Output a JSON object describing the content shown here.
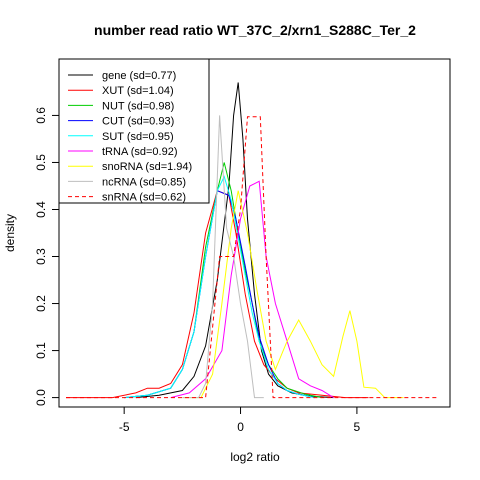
{
  "chart_data": {
    "type": "line",
    "title": "number read ratio WT_37C_2/xrn1_S288C_Ter_2",
    "xlabel": "log2 ratio",
    "ylabel": "density",
    "xlim": [
      -7.8,
      9.0
    ],
    "ylim": [
      -0.02,
      0.72
    ],
    "x_ticks": [
      -5,
      0,
      5
    ],
    "x_tick_labels": [
      "-5",
      "0",
      "5"
    ],
    "y_ticks": [
      0.0,
      0.1,
      0.2,
      0.3,
      0.4,
      0.5,
      0.6
    ],
    "y_tick_labels": [
      "0.0",
      "0.1",
      "0.2",
      "0.3",
      "0.4",
      "0.5",
      "0.6"
    ],
    "grid": false,
    "legend_position": "top-left",
    "series": [
      {
        "name": "gene (sd=0.77)",
        "color": "#000000",
        "dash": "solid",
        "points": [
          [
            -4.5,
            0.0
          ],
          [
            -3.5,
            0.005
          ],
          [
            -2.5,
            0.015
          ],
          [
            -2.0,
            0.045
          ],
          [
            -1.5,
            0.11
          ],
          [
            -1.0,
            0.25
          ],
          [
            -0.5,
            0.45
          ],
          [
            -0.3,
            0.6
          ],
          [
            -0.1,
            0.67
          ],
          [
            0.1,
            0.55
          ],
          [
            0.3,
            0.38
          ],
          [
            0.6,
            0.22
          ],
          [
            0.9,
            0.1
          ],
          [
            1.2,
            0.05
          ],
          [
            1.6,
            0.025
          ],
          [
            2.2,
            0.01
          ],
          [
            3.0,
            0.003
          ],
          [
            4.0,
            0.0
          ]
        ]
      },
      {
        "name": "XUT (sd=1.04)",
        "color": "#ff0000",
        "dash": "solid",
        "points": [
          [
            -7.5,
            0.0
          ],
          [
            -5.5,
            0.0
          ],
          [
            -4.5,
            0.01
          ],
          [
            -4.0,
            0.02
          ],
          [
            -3.5,
            0.02
          ],
          [
            -3.0,
            0.03
          ],
          [
            -2.5,
            0.07
          ],
          [
            -2.0,
            0.18
          ],
          [
            -1.5,
            0.35
          ],
          [
            -1.0,
            0.44
          ],
          [
            -0.5,
            0.43
          ],
          [
            -0.2,
            0.35
          ],
          [
            0.2,
            0.22
          ],
          [
            0.6,
            0.12
          ],
          [
            1.0,
            0.07
          ],
          [
            1.5,
            0.04
          ],
          [
            2.0,
            0.02
          ],
          [
            2.5,
            0.01
          ],
          [
            3.5,
            0.005
          ],
          [
            4.5,
            0.0
          ],
          [
            5.5,
            0.0
          ]
        ]
      },
      {
        "name": "NUT (sd=0.98)",
        "color": "#00cd00",
        "dash": "solid",
        "points": [
          [
            -5.0,
            0.0
          ],
          [
            -4.0,
            0.005
          ],
          [
            -3.0,
            0.02
          ],
          [
            -2.5,
            0.06
          ],
          [
            -2.0,
            0.14
          ],
          [
            -1.5,
            0.32
          ],
          [
            -1.0,
            0.44
          ],
          [
            -0.7,
            0.5
          ],
          [
            -0.4,
            0.44
          ],
          [
            -0.1,
            0.35
          ],
          [
            0.2,
            0.27
          ],
          [
            0.5,
            0.2
          ],
          [
            0.8,
            0.12
          ],
          [
            1.2,
            0.07
          ],
          [
            1.6,
            0.04
          ],
          [
            2.0,
            0.02
          ],
          [
            2.8,
            0.007
          ],
          [
            3.5,
            0.0
          ]
        ]
      },
      {
        "name": "CUT (sd=0.93)",
        "color": "#0000ff",
        "dash": "solid",
        "points": [
          [
            -5.0,
            0.0
          ],
          [
            -4.0,
            0.005
          ],
          [
            -3.0,
            0.02
          ],
          [
            -2.5,
            0.06
          ],
          [
            -2.0,
            0.14
          ],
          [
            -1.5,
            0.3
          ],
          [
            -1.0,
            0.44
          ],
          [
            -0.5,
            0.43
          ],
          [
            -0.2,
            0.38
          ],
          [
            0.2,
            0.28
          ],
          [
            0.5,
            0.2
          ],
          [
            0.8,
            0.13
          ],
          [
            1.2,
            0.07
          ],
          [
            1.6,
            0.03
          ],
          [
            2.0,
            0.015
          ],
          [
            2.5,
            0.007
          ],
          [
            3.2,
            0.0
          ]
        ]
      },
      {
        "name": "SUT (sd=0.95)",
        "color": "#00ffff",
        "dash": "solid",
        "points": [
          [
            -5.0,
            0.0
          ],
          [
            -4.0,
            0.005
          ],
          [
            -3.0,
            0.02
          ],
          [
            -2.5,
            0.06
          ],
          [
            -2.0,
            0.14
          ],
          [
            -1.5,
            0.3
          ],
          [
            -1.0,
            0.44
          ],
          [
            -0.7,
            0.47
          ],
          [
            -0.4,
            0.42
          ],
          [
            -0.1,
            0.34
          ],
          [
            0.2,
            0.26
          ],
          [
            0.5,
            0.18
          ],
          [
            0.8,
            0.12
          ],
          [
            1.2,
            0.06
          ],
          [
            1.6,
            0.03
          ],
          [
            2.0,
            0.015
          ],
          [
            2.5,
            0.007
          ],
          [
            3.2,
            0.0
          ]
        ]
      },
      {
        "name": "tRNA (sd=0.92)",
        "color": "#ff00ff",
        "dash": "solid",
        "points": [
          [
            -3.0,
            0.0
          ],
          [
            -2.2,
            0.01
          ],
          [
            -1.5,
            0.04
          ],
          [
            -0.8,
            0.1
          ],
          [
            -0.4,
            0.26
          ],
          [
            0.0,
            0.38
          ],
          [
            0.4,
            0.45
          ],
          [
            0.8,
            0.46
          ],
          [
            1.1,
            0.3
          ],
          [
            1.5,
            0.2
          ],
          [
            2.0,
            0.12
          ],
          [
            2.5,
            0.04
          ],
          [
            3.0,
            0.025
          ],
          [
            3.5,
            0.015
          ],
          [
            4.0,
            0.0
          ]
        ]
      },
      {
        "name": "snoRNA (sd=1.94)",
        "color": "#ffff00",
        "dash": "solid",
        "points": [
          [
            -2.5,
            0.0
          ],
          [
            -1.7,
            0.0
          ],
          [
            -1.2,
            0.05
          ],
          [
            -0.8,
            0.2
          ],
          [
            -0.4,
            0.36
          ],
          [
            -0.1,
            0.44
          ],
          [
            0.3,
            0.35
          ],
          [
            0.7,
            0.23
          ],
          [
            1.1,
            0.12
          ],
          [
            1.5,
            0.06
          ],
          [
            2.0,
            0.12
          ],
          [
            2.5,
            0.165
          ],
          [
            3.0,
            0.12
          ],
          [
            3.5,
            0.07
          ],
          [
            4.0,
            0.045
          ],
          [
            4.4,
            0.13
          ],
          [
            4.7,
            0.185
          ],
          [
            5.0,
            0.12
          ],
          [
            5.3,
            0.022
          ],
          [
            5.8,
            0.02
          ],
          [
            6.2,
            0.0
          ],
          [
            7.0,
            0.0
          ]
        ]
      },
      {
        "name": "ncRNA (sd=0.85)",
        "color": "#bebebe",
        "dash": "solid",
        "points": [
          [
            -2.5,
            0.0
          ],
          [
            -1.8,
            0.0
          ],
          [
            -1.5,
            0.03
          ],
          [
            -1.2,
            0.2
          ],
          [
            -0.9,
            0.6
          ],
          [
            -0.6,
            0.36
          ],
          [
            -0.3,
            0.3
          ],
          [
            0.0,
            0.2
          ],
          [
            0.3,
            0.12
          ],
          [
            0.6,
            0.0
          ],
          [
            1.0,
            0.0
          ]
        ]
      },
      {
        "name": "snRNA (sd=0.62)",
        "color": "#ff0000",
        "dash": "dashed",
        "points": [
          [
            -7.5,
            0.0
          ],
          [
            -1.5,
            0.0
          ],
          [
            -1.2,
            0.15
          ],
          [
            -0.9,
            0.3
          ],
          [
            -0.3,
            0.3
          ],
          [
            0.0,
            0.4
          ],
          [
            0.3,
            0.597
          ],
          [
            0.85,
            0.597
          ],
          [
            1.1,
            0.3
          ],
          [
            1.4,
            0.0
          ],
          [
            8.5,
            0.0
          ]
        ]
      }
    ]
  }
}
